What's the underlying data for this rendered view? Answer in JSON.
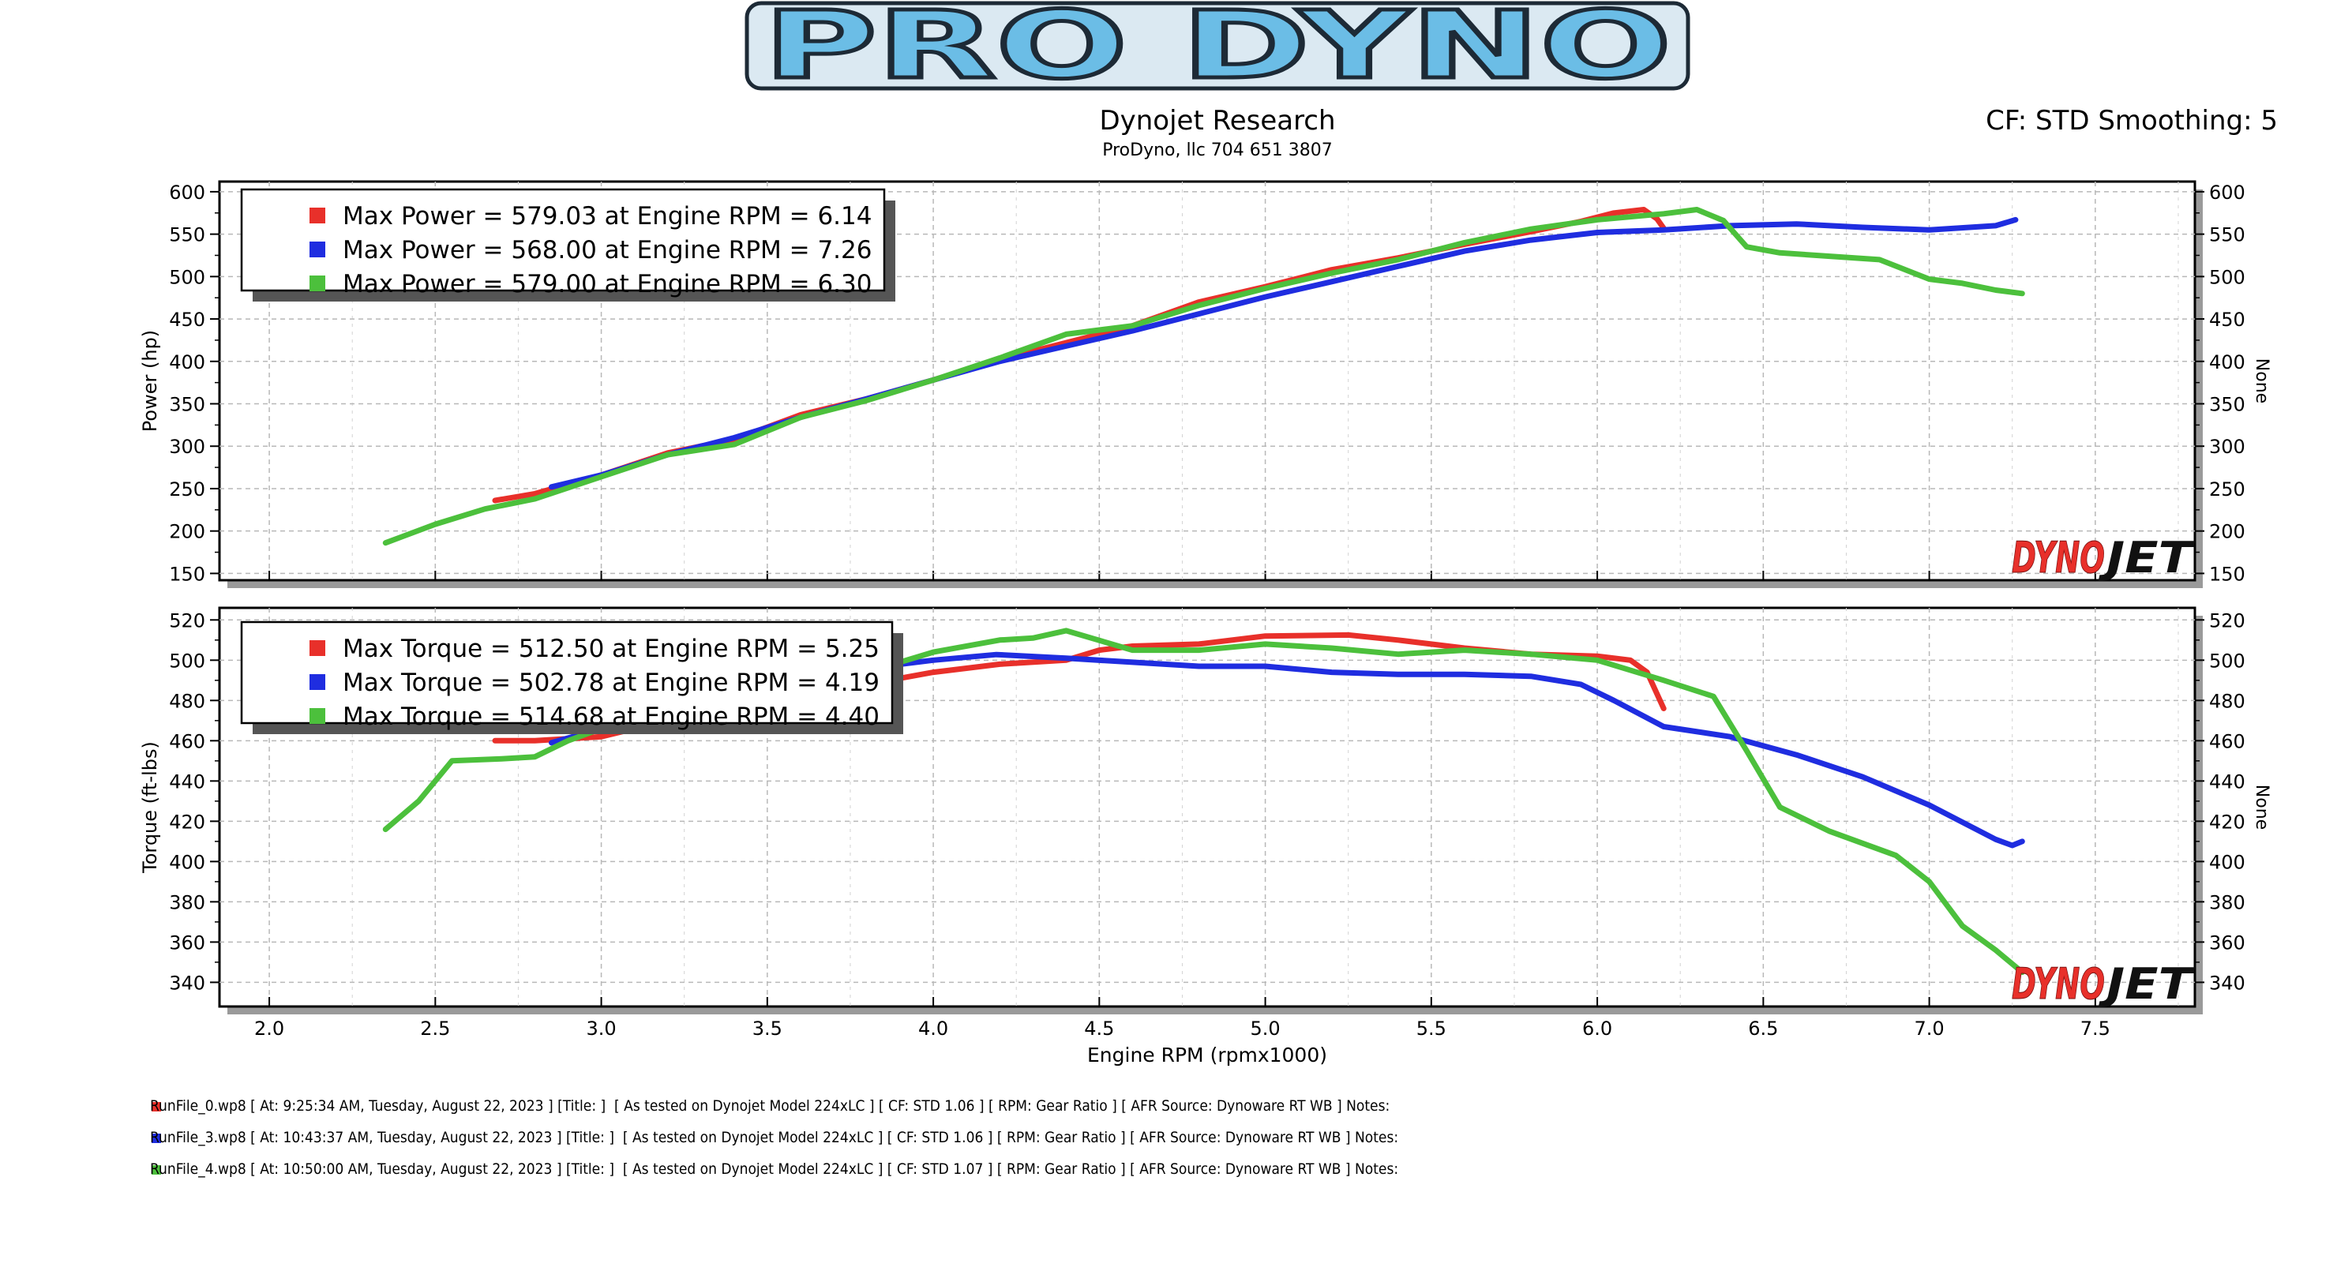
{
  "header": {
    "logo_text": "PRO DYNO",
    "title": "Dynojet Research",
    "subtitle": "ProDyno, llc 704 651 3807",
    "cf_info": "CF: STD Smoothing: 5"
  },
  "watermark": {
    "text_left": "DYNO",
    "text_right": "JET"
  },
  "colors": {
    "run0": "#e8302a",
    "run3": "#1f2de0",
    "run4": "#4cc03c",
    "logo_fill": "#6bbde6",
    "logo_stroke": "#1d2a36"
  },
  "chart_data": [
    {
      "id": "power",
      "type": "line",
      "ylabel": "Power (hp)",
      "ylabel_right": "None",
      "xlim": [
        1.85,
        7.8
      ],
      "ylim": [
        142,
        612
      ],
      "yticks": [
        150,
        200,
        250,
        300,
        350,
        400,
        450,
        500,
        550,
        600
      ],
      "legend": {
        "placement": "top-left",
        "entries": [
          "Max Power = 579.03 at Engine RPM = 6.14",
          "Max Power = 568.00 at Engine RPM = 7.26",
          "Max Power = 579.00 at Engine RPM = 6.30"
        ]
      },
      "grid": true,
      "series": [
        {
          "color": "#e8302a",
          "points": [
            [
              2.68,
              236
            ],
            [
              2.8,
              244
            ],
            [
              3.0,
              266
            ],
            [
              3.2,
              292
            ],
            [
              3.4,
              308
            ],
            [
              3.6,
              337
            ],
            [
              3.8,
              356
            ],
            [
              4.0,
              378
            ],
            [
              4.2,
              402
            ],
            [
              4.4,
              422
            ],
            [
              4.6,
              442
            ],
            [
              4.8,
              470
            ],
            [
              5.0,
              488
            ],
            [
              5.2,
              508
            ],
            [
              5.4,
              522
            ],
            [
              5.6,
              538
            ],
            [
              5.8,
              553
            ],
            [
              5.95,
              565
            ],
            [
              6.05,
              575
            ],
            [
              6.14,
              579
            ],
            [
              6.18,
              568
            ],
            [
              6.2,
              557
            ]
          ]
        },
        {
          "color": "#1f2de0",
          "points": [
            [
              2.85,
              252
            ],
            [
              3.0,
              266
            ],
            [
              3.2,
              290
            ],
            [
              3.4,
              310
            ],
            [
              3.6,
              334
            ],
            [
              3.8,
              356
            ],
            [
              4.0,
              378
            ],
            [
              4.2,
              400
            ],
            [
              4.4,
              418
            ],
            [
              4.6,
              436
            ],
            [
              4.8,
              456
            ],
            [
              5.0,
              476
            ],
            [
              5.2,
              494
            ],
            [
              5.4,
              512
            ],
            [
              5.6,
              530
            ],
            [
              5.8,
              543
            ],
            [
              6.0,
              552
            ],
            [
              6.2,
              555
            ],
            [
              6.4,
              560
            ],
            [
              6.6,
              562
            ],
            [
              6.8,
              558
            ],
            [
              7.0,
              555
            ],
            [
              7.2,
              560
            ],
            [
              7.26,
              567
            ]
          ]
        },
        {
          "color": "#4cc03c",
          "points": [
            [
              2.35,
              186
            ],
            [
              2.5,
              208
            ],
            [
              2.65,
              226
            ],
            [
              2.8,
              238
            ],
            [
              3.0,
              264
            ],
            [
              3.2,
              290
            ],
            [
              3.4,
              302
            ],
            [
              3.6,
              334
            ],
            [
              3.8,
              354
            ],
            [
              4.0,
              378
            ],
            [
              4.2,
              404
            ],
            [
              4.4,
              432
            ],
            [
              4.6,
              442
            ],
            [
              4.8,
              466
            ],
            [
              5.0,
              486
            ],
            [
              5.2,
              504
            ],
            [
              5.4,
              520
            ],
            [
              5.6,
              540
            ],
            [
              5.8,
              556
            ],
            [
              6.0,
              567
            ],
            [
              6.2,
              574
            ],
            [
              6.3,
              579
            ],
            [
              6.38,
              566
            ],
            [
              6.45,
              535
            ],
            [
              6.55,
              528
            ],
            [
              6.7,
              524
            ],
            [
              6.85,
              520
            ],
            [
              7.0,
              497
            ],
            [
              7.1,
              492
            ],
            [
              7.2,
              484
            ],
            [
              7.28,
              480
            ]
          ]
        }
      ]
    },
    {
      "id": "torque",
      "type": "line",
      "ylabel": "Torque (ft-lbs)",
      "ylabel_right": "None",
      "xlabel": "Engine RPM (rpmx1000)",
      "xlim": [
        1.85,
        7.8
      ],
      "ylim": [
        328,
        526
      ],
      "yticks": [
        340,
        360,
        380,
        400,
        420,
        440,
        460,
        480,
        500,
        520
      ],
      "xticks": [
        "2.0",
        "2.5",
        "3.0",
        "3.5",
        "4.0",
        "4.5",
        "5.0",
        "5.5",
        "6.0",
        "6.5",
        "7.0",
        "7.5"
      ],
      "legend": {
        "placement": "top-left",
        "entries": [
          "Max Torque = 512.50 at Engine RPM = 5.25",
          "Max Torque = 502.78 at Engine RPM = 4.19",
          "Max Torque = 514.68 at Engine RPM = 4.40"
        ]
      },
      "grid": true,
      "series": [
        {
          "color": "#e8302a",
          "points": [
            [
              2.68,
              460
            ],
            [
              2.8,
              460
            ],
            [
              3.0,
              462
            ],
            [
              3.2,
              470
            ],
            [
              3.4,
              476
            ],
            [
              3.6,
              482
            ],
            [
              3.8,
              488
            ],
            [
              4.0,
              494
            ],
            [
              4.2,
              498
            ],
            [
              4.4,
              500
            ],
            [
              4.5,
              505
            ],
            [
              4.6,
              507
            ],
            [
              4.8,
              508
            ],
            [
              5.0,
              512
            ],
            [
              5.25,
              512.5
            ],
            [
              5.4,
              510
            ],
            [
              5.6,
              506
            ],
            [
              5.8,
              503
            ],
            [
              6.0,
              502
            ],
            [
              6.1,
              500
            ],
            [
              6.15,
              494
            ],
            [
              6.2,
              476
            ]
          ]
        },
        {
          "color": "#1f2de0",
          "points": [
            [
              2.85,
              459
            ],
            [
              3.0,
              466
            ],
            [
              3.2,
              476
            ],
            [
              3.4,
              484
            ],
            [
              3.6,
              490
            ],
            [
              3.8,
              496
            ],
            [
              4.0,
              500
            ],
            [
              4.19,
              502.78
            ],
            [
              4.4,
              501
            ],
            [
              4.6,
              499
            ],
            [
              4.8,
              497
            ],
            [
              5.0,
              497
            ],
            [
              5.2,
              494
            ],
            [
              5.4,
              493
            ],
            [
              5.6,
              493
            ],
            [
              5.8,
              492
            ],
            [
              5.95,
              488
            ],
            [
              6.05,
              480
            ],
            [
              6.2,
              467
            ],
            [
              6.4,
              462
            ],
            [
              6.6,
              453
            ],
            [
              6.8,
              442
            ],
            [
              7.0,
              428
            ],
            [
              7.2,
              411
            ],
            [
              7.25,
              408
            ],
            [
              7.28,
              410
            ]
          ]
        },
        {
          "color": "#4cc03c",
          "points": [
            [
              2.35,
              416
            ],
            [
              2.45,
              430
            ],
            [
              2.55,
              450
            ],
            [
              2.7,
              451
            ],
            [
              2.8,
              452
            ],
            [
              2.9,
              460
            ],
            [
              3.0,
              466
            ],
            [
              3.2,
              472
            ],
            [
              3.4,
              478
            ],
            [
              3.6,
              486
            ],
            [
              3.8,
              494
            ],
            [
              4.0,
              504
            ],
            [
              4.2,
              510
            ],
            [
              4.3,
              511
            ],
            [
              4.4,
              514.68
            ],
            [
              4.6,
              505
            ],
            [
              4.8,
              505
            ],
            [
              5.0,
              508
            ],
            [
              5.2,
              506
            ],
            [
              5.4,
              503
            ],
            [
              5.6,
              505
            ],
            [
              5.8,
              503
            ],
            [
              6.0,
              500
            ],
            [
              6.2,
              490
            ],
            [
              6.35,
              482
            ],
            [
              6.45,
              455
            ],
            [
              6.55,
              427
            ],
            [
              6.7,
              415
            ],
            [
              6.9,
              403
            ],
            [
              7.0,
              390
            ],
            [
              7.1,
              368
            ],
            [
              7.2,
              356
            ],
            [
              7.28,
              345
            ]
          ]
        }
      ]
    }
  ],
  "run_files": [
    "RunFile_0.wp8 [ At: 9:25:34 AM, Tuesday, August 22, 2023 ] [Title: ]  [ As tested on Dynojet Model 224xLC ] [ CF: STD 1.06 ] [ RPM: Gear Ratio ] [ AFR Source: Dynoware RT WB ] Notes:",
    "RunFile_3.wp8 [ At: 10:43:37 AM, Tuesday, August 22, 2023 ] [Title: ]  [ As tested on Dynojet Model 224xLC ] [ CF: STD 1.06 ] [ RPM: Gear Ratio ] [ AFR Source: Dynoware RT WB ] Notes:",
    "RunFile_4.wp8 [ At: 10:50:00 AM, Tuesday, August 22, 2023 ] [Title: ]  [ As tested on Dynojet Model 224xLC ] [ CF: STD 1.07 ] [ RPM: Gear Ratio ] [ AFR Source: Dynoware RT WB ] Notes:"
  ]
}
